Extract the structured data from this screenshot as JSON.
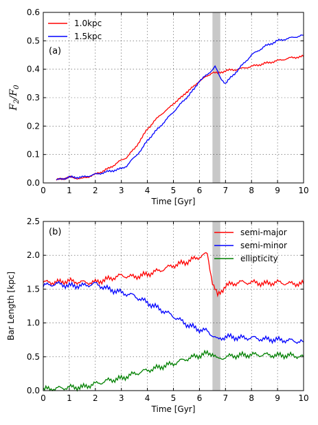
{
  "chart_data": [
    {
      "type": "line",
      "panel_label": "(a)",
      "xlabel": "Time [Gyr]",
      "ylabel": "F_2/F_0",
      "ylabel_display": {
        "main": "F",
        "sub1": "2",
        "slash": "/",
        "main2": "F",
        "sub2": "0"
      },
      "xlim": [
        0,
        10
      ],
      "ylim": [
        0,
        0.6
      ],
      "xticks": [
        "0",
        "1",
        "2",
        "3",
        "4",
        "5",
        "6",
        "7",
        "8",
        "9",
        "10"
      ],
      "yticks": [
        "0.0",
        "0.1",
        "0.2",
        "0.3",
        "0.4",
        "0.5",
        "0.6"
      ],
      "grid": true,
      "legend_position": "top-left",
      "shaded_band": [
        6.5,
        6.8
      ],
      "series": [
        {
          "name": "1.0kpc",
          "color": "#ff0000",
          "x": [
            0.5,
            1.0,
            1.5,
            2.0,
            2.5,
            3.0,
            3.2,
            3.5,
            3.8,
            4.0,
            4.2,
            4.5,
            4.8,
            5.0,
            5.3,
            5.5,
            5.8,
            6.0,
            6.3,
            6.5,
            6.7,
            7.0,
            7.5,
            8.0,
            8.5,
            9.0,
            9.5,
            10.0
          ],
          "y": [
            0.01,
            0.02,
            0.015,
            0.03,
            0.05,
            0.08,
            0.09,
            0.12,
            0.16,
            0.19,
            0.21,
            0.24,
            0.26,
            0.28,
            0.3,
            0.32,
            0.34,
            0.36,
            0.375,
            0.39,
            0.385,
            0.395,
            0.4,
            0.41,
            0.42,
            0.43,
            0.44,
            0.445
          ]
        },
        {
          "name": "1.5kpc",
          "color": "#0000ff",
          "x": [
            0.5,
            1.0,
            1.5,
            2.0,
            2.5,
            3.0,
            3.2,
            3.5,
            3.8,
            4.0,
            4.2,
            4.5,
            4.8,
            5.0,
            5.3,
            5.5,
            5.8,
            6.0,
            6.3,
            6.5,
            6.6,
            6.8,
            7.0,
            7.3,
            7.5,
            8.0,
            8.5,
            9.0,
            9.5,
            10.0
          ],
          "y": [
            0.01,
            0.02,
            0.02,
            0.03,
            0.04,
            0.05,
            0.06,
            0.09,
            0.12,
            0.15,
            0.17,
            0.2,
            0.23,
            0.25,
            0.28,
            0.3,
            0.33,
            0.36,
            0.38,
            0.4,
            0.41,
            0.37,
            0.35,
            0.38,
            0.4,
            0.45,
            0.48,
            0.5,
            0.51,
            0.52
          ]
        }
      ]
    },
    {
      "type": "line",
      "panel_label": "(b)",
      "xlabel": "Time [Gyr]",
      "ylabel": "Bar Length [kpc]",
      "xlim": [
        0,
        10
      ],
      "ylim": [
        0,
        2.5
      ],
      "xticks": [
        "0",
        "1",
        "2",
        "3",
        "4",
        "5",
        "6",
        "7",
        "8",
        "9",
        "10"
      ],
      "yticks": [
        "0.0",
        "0.5",
        "1.0",
        "1.5",
        "2.0",
        "2.5"
      ],
      "grid": true,
      "legend_position": "top-right",
      "shaded_band": [
        6.5,
        6.8
      ],
      "series": [
        {
          "name": "semi-major",
          "color": "#ff0000",
          "x": [
            0.0,
            0.5,
            1.0,
            1.5,
            2.0,
            2.5,
            3.0,
            3.5,
            4.0,
            4.5,
            5.0,
            5.5,
            6.0,
            6.3,
            6.5,
            6.7,
            7.0,
            7.5,
            8.0,
            8.5,
            9.0,
            9.5,
            10.0
          ],
          "y": [
            1.6,
            1.6,
            1.62,
            1.6,
            1.6,
            1.65,
            1.7,
            1.68,
            1.72,
            1.78,
            1.85,
            1.9,
            1.98,
            2.02,
            1.6,
            1.4,
            1.55,
            1.6,
            1.6,
            1.58,
            1.6,
            1.58,
            1.58
          ]
        },
        {
          "name": "semi-minor",
          "color": "#0000ff",
          "x": [
            0.0,
            0.5,
            1.0,
            1.5,
            2.0,
            2.5,
            3.0,
            3.5,
            4.0,
            4.5,
            5.0,
            5.5,
            6.0,
            6.3,
            6.5,
            6.7,
            7.0,
            7.5,
            8.0,
            8.5,
            9.0,
            9.5,
            10.0
          ],
          "y": [
            1.55,
            1.58,
            1.55,
            1.55,
            1.58,
            1.5,
            1.45,
            1.4,
            1.3,
            1.2,
            1.1,
            0.98,
            0.9,
            0.88,
            0.82,
            0.75,
            0.8,
            0.78,
            0.78,
            0.76,
            0.75,
            0.74,
            0.72
          ]
        },
        {
          "name": "ellipticity",
          "color": "#008000",
          "x": [
            0.0,
            0.5,
            1.0,
            1.5,
            2.0,
            2.5,
            3.0,
            3.5,
            4.0,
            4.5,
            5.0,
            5.5,
            6.0,
            6.3,
            6.5,
            6.7,
            7.0,
            7.5,
            8.0,
            8.5,
            9.0,
            9.5,
            10.0
          ],
          "y": [
            0.02,
            0.03,
            0.05,
            0.05,
            0.1,
            0.15,
            0.18,
            0.25,
            0.3,
            0.35,
            0.4,
            0.47,
            0.52,
            0.55,
            0.55,
            0.46,
            0.5,
            0.52,
            0.53,
            0.53,
            0.52,
            0.52,
            0.5
          ]
        }
      ]
    }
  ]
}
